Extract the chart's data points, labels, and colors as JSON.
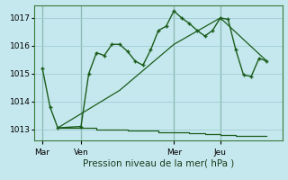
{
  "background_color": "#c5e8ee",
  "grid_color": "#a0ccd4",
  "line_color": "#1a5c1a",
  "xlabel": "Pression niveau de la mer( hPa )",
  "ylim": [
    1012.6,
    1017.45
  ],
  "yticks": [
    1013,
    1014,
    1015,
    1016,
    1017
  ],
  "xlim": [
    0,
    96
  ],
  "day_labels": [
    "Mar",
    "Ven",
    "Mer",
    "Jeu"
  ],
  "day_positions": [
    3,
    18,
    54,
    72
  ],
  "vline_positions": [
    3,
    18,
    54,
    72
  ],
  "series1_x": [
    3,
    6,
    9,
    18,
    21,
    24,
    27,
    30,
    33,
    36,
    39,
    42,
    45,
    48,
    51,
    54,
    57,
    60,
    63,
    66,
    69,
    72,
    75,
    78,
    81,
    84,
    87,
    90
  ],
  "series1_y": [
    1015.2,
    1013.8,
    1013.05,
    1013.1,
    1015.0,
    1015.75,
    1015.65,
    1016.05,
    1016.05,
    1015.8,
    1015.45,
    1015.3,
    1015.85,
    1016.55,
    1016.7,
    1017.25,
    1017.0,
    1016.8,
    1016.55,
    1016.35,
    1016.55,
    1017.0,
    1016.95,
    1015.85,
    1014.95,
    1014.9,
    1015.55,
    1015.45
  ],
  "series2_x": [
    9,
    33,
    54,
    72,
    90
  ],
  "series2_y": [
    1013.05,
    1014.4,
    1016.05,
    1017.0,
    1015.45
  ],
  "series3_steps": true,
  "bottom_line_x": [
    9,
    12,
    15,
    18,
    21,
    24,
    27,
    30,
    33,
    36,
    39,
    42,
    45,
    48,
    51,
    54,
    57,
    60,
    63,
    66,
    69,
    72,
    75,
    78,
    81,
    84,
    87,
    90
  ],
  "bottom_line_y": [
    1013.05,
    1013.05,
    1013.05,
    1013.05,
    1013.05,
    1013.0,
    1013.0,
    1013.0,
    1013.0,
    1012.95,
    1012.95,
    1012.95,
    1012.95,
    1012.9,
    1012.9,
    1012.9,
    1012.9,
    1012.87,
    1012.85,
    1012.83,
    1012.82,
    1012.8,
    1012.78,
    1012.77,
    1012.76,
    1012.76,
    1012.75,
    1012.75
  ]
}
